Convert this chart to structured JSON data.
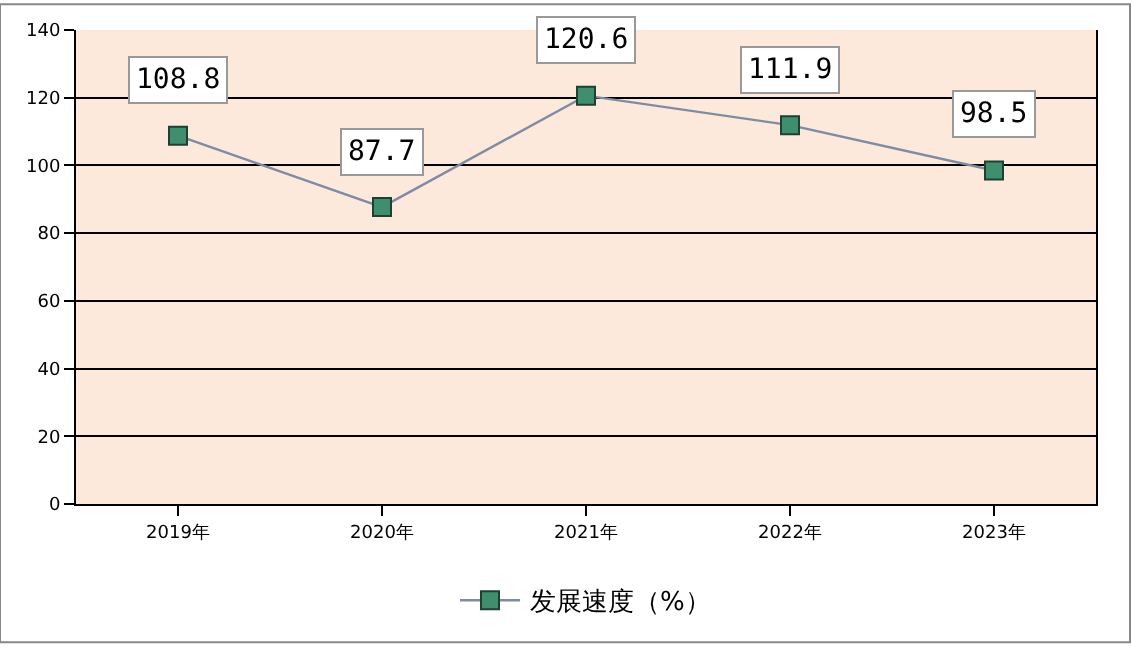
{
  "chart_data": {
    "type": "line",
    "categories": [
      "2019年",
      "2020年",
      "2021年",
      "2022年",
      "2023年"
    ],
    "series": [
      {
        "name": "发展速度（%）",
        "color": "#7f8ba3",
        "colors": [
          "#3f8f6f",
          "#3f8f6f",
          "#3f8f6f",
          "#3f8f6f",
          "#3f8f6f"
        ],
        "values": [
          108.8,
          87.7,
          120.6,
          111.9,
          98.5
        ]
      }
    ],
    "ylim": [
      0,
      140
    ],
    "yticks": [
      0,
      20,
      40,
      60,
      80,
      100,
      120,
      140
    ],
    "grid": "y",
    "legend": "bottom",
    "marker": "square",
    "line_style": "solid",
    "data_labels": true
  }
}
